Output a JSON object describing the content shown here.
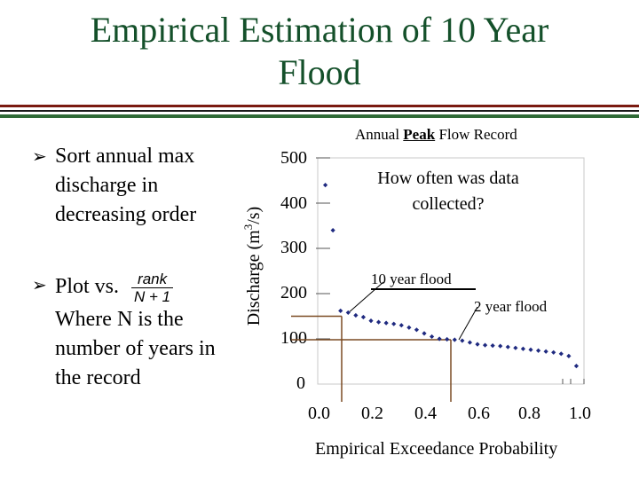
{
  "slide": {
    "title_line1": "Empirical Estimation of 10 Year",
    "title_line2": "Flood",
    "bullet1": "Sort annual max discharge in decreasing order",
    "bullet2_prefix": "Plot vs.",
    "bullet2_rest": "Where N is the number of years in the record",
    "fraction_numerator": "rank",
    "fraction_denominator": "N + 1",
    "colors": {
      "title": "#14502a",
      "points": "#1f2a80"
    }
  },
  "annotations": {
    "record_title_pre": "Annual ",
    "record_title_peak": "Peak",
    "record_title_post": " Flow Record",
    "question_line1": "How often was data",
    "question_line2": "collected?",
    "ten_year_flood": "10 year flood",
    "two_year_flood": "2 year flood"
  },
  "chart_data": {
    "type": "scatter",
    "title": "Annual Peak Flow Record",
    "ylabel": "Discharge (m3/s)",
    "ylabel_main": "Discharge (m",
    "ylabel_sup": "3",
    "ylabel_end": "/s)",
    "xlabel": "Empirical Exceedance Probability",
    "xlim": [
      0.0,
      1.0
    ],
    "ylim": [
      0,
      500
    ],
    "xticks": [
      "0.0",
      "0.2",
      "0.4",
      "0.6",
      "0.8",
      "1.0"
    ],
    "yticks": [
      "0",
      "100",
      "200",
      "300",
      "400",
      "500"
    ],
    "grid": false,
    "x": [
      0.0286,
      0.0571,
      0.0857,
      0.1143,
      0.1429,
      0.1714,
      0.2,
      0.2286,
      0.2571,
      0.2857,
      0.3143,
      0.3429,
      0.3714,
      0.4,
      0.4286,
      0.4571,
      0.4857,
      0.5143,
      0.5429,
      0.5714,
      0.6,
      0.6286,
      0.6571,
      0.6857,
      0.7143,
      0.7429,
      0.7714,
      0.8,
      0.8286,
      0.8571,
      0.8857,
      0.9143,
      0.9429,
      0.9714
    ],
    "y": [
      440,
      340,
      162,
      158,
      152,
      148,
      140,
      137,
      135,
      133,
      130,
      125,
      120,
      112,
      105,
      100,
      99,
      98,
      96,
      92,
      88,
      86,
      85,
      84,
      82,
      80,
      78,
      76,
      74,
      72,
      70,
      67,
      62,
      40
    ],
    "reference_lines": [
      {
        "name": "10 year flood",
        "x": 0.09,
        "y": 150
      },
      {
        "name": "2 year flood",
        "x": 0.5,
        "y": 98
      }
    ]
  }
}
